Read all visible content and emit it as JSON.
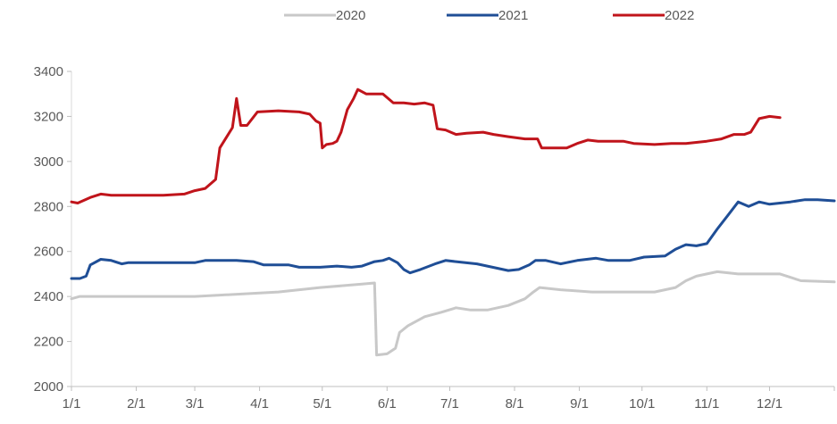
{
  "chart_data": {
    "type": "line",
    "title": "",
    "xlabel": "",
    "ylabel": "",
    "ylim": [
      2000,
      3400
    ],
    "yticks": [
      2000,
      2200,
      2400,
      2600,
      2800,
      3000,
      3200,
      3400
    ],
    "xlim": [
      1,
      366
    ],
    "xticks": [
      {
        "label": "1/1",
        "day": 1
      },
      {
        "label": "2/1",
        "day": 32
      },
      {
        "label": "3/1",
        "day": 60
      },
      {
        "label": "4/1",
        "day": 91
      },
      {
        "label": "5/1",
        "day": 121
      },
      {
        "label": "6/1",
        "day": 152
      },
      {
        "label": "7/1",
        "day": 182
      },
      {
        "label": "8/1",
        "day": 213
      },
      {
        "label": "9/1",
        "day": 244
      },
      {
        "label": "10/1",
        "day": 274
      },
      {
        "label": "11/1",
        "day": 305
      },
      {
        "label": "12/1",
        "day": 335
      }
    ],
    "grid": false,
    "legend_position": "top",
    "series": [
      {
        "name": "2020",
        "color": "#c8c8c8",
        "points": [
          [
            1,
            2390
          ],
          [
            5,
            2400
          ],
          [
            60,
            2400
          ],
          [
            70,
            2405
          ],
          [
            100,
            2420
          ],
          [
            120,
            2440
          ],
          [
            140,
            2455
          ],
          [
            146,
            2460
          ],
          [
            147,
            2140
          ],
          [
            152,
            2145
          ],
          [
            156,
            2170
          ],
          [
            158,
            2240
          ],
          [
            162,
            2270
          ],
          [
            170,
            2310
          ],
          [
            178,
            2330
          ],
          [
            185,
            2350
          ],
          [
            192,
            2340
          ],
          [
            200,
            2340
          ],
          [
            210,
            2360
          ],
          [
            218,
            2390
          ],
          [
            222,
            2420
          ],
          [
            225,
            2440
          ],
          [
            235,
            2430
          ],
          [
            250,
            2420
          ],
          [
            265,
            2420
          ],
          [
            280,
            2420
          ],
          [
            290,
            2440
          ],
          [
            295,
            2470
          ],
          [
            300,
            2490
          ],
          [
            310,
            2510
          ],
          [
            320,
            2500
          ],
          [
            340,
            2500
          ],
          [
            350,
            2470
          ],
          [
            366,
            2465
          ]
        ]
      },
      {
        "name": "2021",
        "color": "#1f4e96",
        "points": [
          [
            1,
            2480
          ],
          [
            5,
            2480
          ],
          [
            8,
            2490
          ],
          [
            10,
            2540
          ],
          [
            15,
            2565
          ],
          [
            20,
            2560
          ],
          [
            25,
            2545
          ],
          [
            28,
            2550
          ],
          [
            40,
            2550
          ],
          [
            55,
            2550
          ],
          [
            60,
            2550
          ],
          [
            65,
            2560
          ],
          [
            80,
            2560
          ],
          [
            88,
            2555
          ],
          [
            93,
            2540
          ],
          [
            100,
            2540
          ],
          [
            105,
            2540
          ],
          [
            110,
            2530
          ],
          [
            120,
            2530
          ],
          [
            128,
            2535
          ],
          [
            135,
            2530
          ],
          [
            140,
            2535
          ],
          [
            146,
            2555
          ],
          [
            150,
            2560
          ],
          [
            153,
            2570
          ],
          [
            157,
            2550
          ],
          [
            160,
            2520
          ],
          [
            163,
            2505
          ],
          [
            168,
            2520
          ],
          [
            175,
            2545
          ],
          [
            180,
            2560
          ],
          [
            185,
            2555
          ],
          [
            195,
            2545
          ],
          [
            205,
            2525
          ],
          [
            210,
            2515
          ],
          [
            215,
            2520
          ],
          [
            220,
            2540
          ],
          [
            223,
            2560
          ],
          [
            228,
            2560
          ],
          [
            235,
            2545
          ],
          [
            243,
            2560
          ],
          [
            252,
            2570
          ],
          [
            258,
            2560
          ],
          [
            268,
            2560
          ],
          [
            275,
            2575
          ],
          [
            285,
            2580
          ],
          [
            290,
            2610
          ],
          [
            295,
            2630
          ],
          [
            300,
            2625
          ],
          [
            305,
            2635
          ],
          [
            310,
            2700
          ],
          [
            315,
            2760
          ],
          [
            320,
            2820
          ],
          [
            325,
            2800
          ],
          [
            330,
            2820
          ],
          [
            335,
            2810
          ],
          [
            345,
            2820
          ],
          [
            352,
            2830
          ],
          [
            358,
            2830
          ],
          [
            366,
            2825
          ]
        ]
      },
      {
        "name": "2022",
        "color": "#c0141b",
        "points": [
          [
            1,
            2820
          ],
          [
            4,
            2815
          ],
          [
            10,
            2840
          ],
          [
            15,
            2855
          ],
          [
            20,
            2850
          ],
          [
            30,
            2850
          ],
          [
            45,
            2850
          ],
          [
            55,
            2855
          ],
          [
            60,
            2870
          ],
          [
            65,
            2880
          ],
          [
            70,
            2920
          ],
          [
            72,
            3060
          ],
          [
            78,
            3150
          ],
          [
            80,
            3280
          ],
          [
            82,
            3160
          ],
          [
            85,
            3160
          ],
          [
            90,
            3220
          ],
          [
            100,
            3225
          ],
          [
            110,
            3220
          ],
          [
            115,
            3210
          ],
          [
            118,
            3180
          ],
          [
            120,
            3170
          ],
          [
            121,
            3060
          ],
          [
            123,
            3075
          ],
          [
            126,
            3080
          ],
          [
            128,
            3090
          ],
          [
            130,
            3130
          ],
          [
            133,
            3230
          ],
          [
            136,
            3280
          ],
          [
            138,
            3320
          ],
          [
            142,
            3300
          ],
          [
            150,
            3300
          ],
          [
            155,
            3260
          ],
          [
            160,
            3260
          ],
          [
            165,
            3255
          ],
          [
            170,
            3260
          ],
          [
            174,
            3250
          ],
          [
            176,
            3145
          ],
          [
            180,
            3140
          ],
          [
            185,
            3120
          ],
          [
            190,
            3125
          ],
          [
            198,
            3130
          ],
          [
            203,
            3120
          ],
          [
            210,
            3110
          ],
          [
            218,
            3100
          ],
          [
            224,
            3100
          ],
          [
            226,
            3060
          ],
          [
            232,
            3060
          ],
          [
            238,
            3060
          ],
          [
            243,
            3080
          ],
          [
            248,
            3095
          ],
          [
            253,
            3090
          ],
          [
            265,
            3090
          ],
          [
            270,
            3080
          ],
          [
            280,
            3075
          ],
          [
            288,
            3080
          ],
          [
            295,
            3080
          ],
          [
            305,
            3090
          ],
          [
            312,
            3100
          ],
          [
            318,
            3120
          ],
          [
            323,
            3120
          ],
          [
            326,
            3130
          ],
          [
            330,
            3190
          ],
          [
            335,
            3200
          ],
          [
            340,
            3195
          ]
        ]
      }
    ]
  }
}
